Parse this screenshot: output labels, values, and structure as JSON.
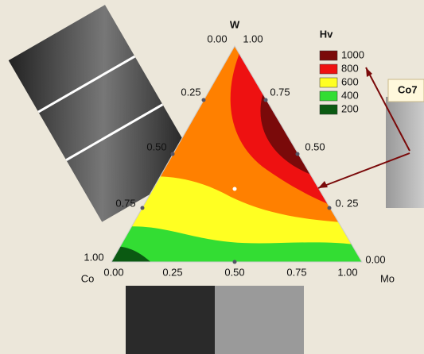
{
  "figure": {
    "vertex_labels": {
      "top": "W",
      "left": "Co",
      "right": "Mo"
    },
    "top_ticks": [
      "0.00",
      "1.00"
    ],
    "left_ticks": [
      "0.25",
      "0.50",
      "0.75",
      "1.00"
    ],
    "right_ticks": [
      "0.75",
      "0.50",
      "0. 25",
      "0.00"
    ],
    "bottom_ticks": [
      "0.00",
      "0.25",
      "0.50",
      "0.75",
      "1.00"
    ]
  },
  "legend": {
    "title": "Hv",
    "items": [
      {
        "label": "1000",
        "color": "#7a0a0a"
      },
      {
        "label": "800",
        "color": "#ee1111"
      },
      {
        "label": "600",
        "color": "#ffff22"
      },
      {
        "label": "400",
        "color": "#33dd33"
      },
      {
        "label": "200",
        "color": "#0b5a12"
      }
    ]
  },
  "callout": "Co7"
}
